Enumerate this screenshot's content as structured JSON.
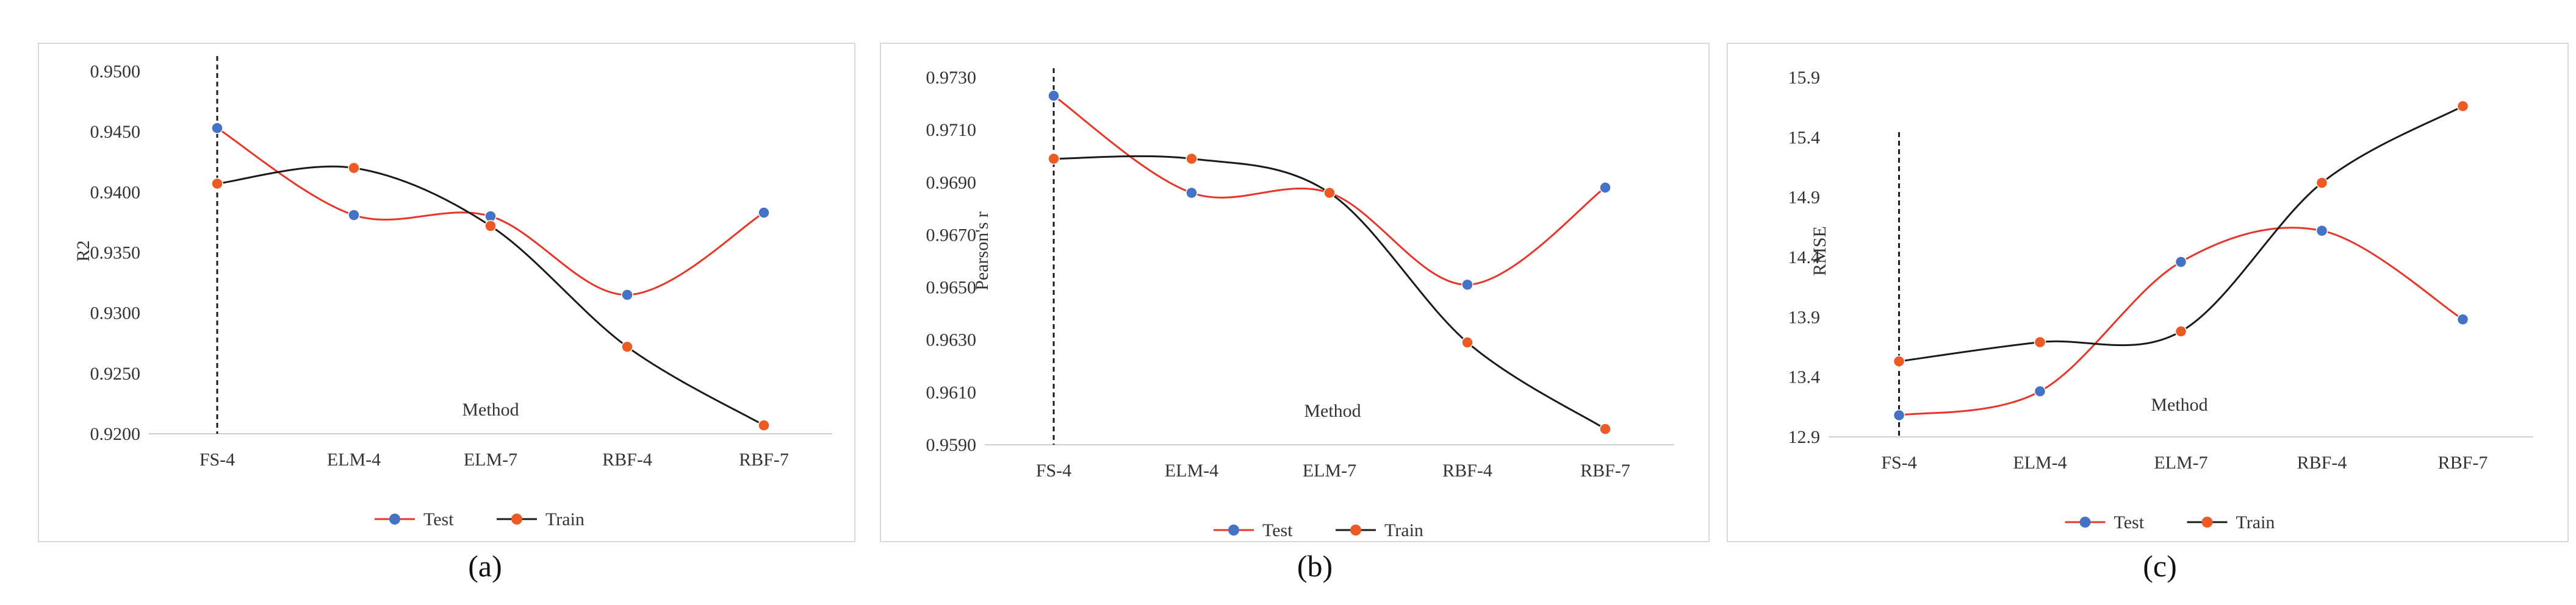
{
  "colors": {
    "test": "#e8352a",
    "train": "#1a1a1a",
    "test_marker": "#4472c4",
    "train_marker": "#ed5a24",
    "dash": "#1a1a1a"
  },
  "legend": {
    "test_label": "Test",
    "train_label": "Train"
  },
  "captions": [
    "(a)",
    "(b)",
    "(c)"
  ],
  "chart_data": [
    {
      "type": "line",
      "caption": "(a)",
      "xlabel": "Method",
      "ylabel": "R2",
      "categories": [
        "FS-4",
        "ELM-4",
        "ELM-7",
        "RBF-4",
        "RBF-7"
      ],
      "yticks": [
        "0.9200",
        "0.9250",
        "0.9300",
        "0.9350",
        "0.9400",
        "0.9450",
        "0.9500"
      ],
      "ylim": [
        0.92,
        0.95
      ],
      "series": [
        {
          "name": "Test",
          "values": [
            0.9453,
            0.9381,
            0.938,
            0.9315,
            0.9383
          ]
        },
        {
          "name": "Train",
          "values": [
            0.9407,
            0.942,
            0.9372,
            0.9272,
            0.9207
          ]
        }
      ],
      "legend_position": "bottom"
    },
    {
      "type": "line",
      "caption": "(b)",
      "xlabel": "Method",
      "ylabel": "Pearson's r",
      "categories": [
        "FS-4",
        "ELM-4",
        "ELM-7",
        "RBF-4",
        "RBF-7"
      ],
      "yticks": [
        "0.9590",
        "0.9610",
        "0.9630",
        "0.9650",
        "0.9670",
        "0.9690",
        "0.9710",
        "0.9730"
      ],
      "ylim": [
        0.959,
        0.973
      ],
      "series": [
        {
          "name": "Test",
          "values": [
            0.9723,
            0.9686,
            0.9686,
            0.9651,
            0.9688
          ]
        },
        {
          "name": "Train",
          "values": [
            0.9699,
            0.9699,
            0.9686,
            0.9629,
            0.9596
          ]
        }
      ],
      "legend_position": "bottom"
    },
    {
      "type": "line",
      "caption": "(c)",
      "xlabel": "Method",
      "ylabel": "RMSE",
      "categories": [
        "FS-4",
        "ELM-4",
        "ELM-7",
        "RBF-4",
        "RBF-7"
      ],
      "yticks": [
        "12.9",
        "13.4",
        "13.9",
        "14.4",
        "14.9",
        "15.4",
        "15.9"
      ],
      "ylim": [
        12.9,
        15.9
      ],
      "series": [
        {
          "name": "Test",
          "values": [
            13.08,
            13.28,
            14.36,
            14.62,
            13.88
          ]
        },
        {
          "name": "Train",
          "values": [
            13.53,
            13.69,
            13.78,
            15.02,
            15.66
          ]
        }
      ],
      "legend_position": "bottom"
    }
  ]
}
